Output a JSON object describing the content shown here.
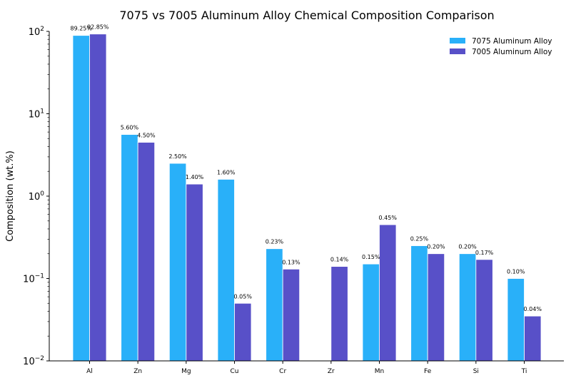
{
  "chart_data": {
    "type": "bar",
    "title": "7075 vs 7005 Aluminum Alloy Chemical Composition Comparison",
    "xlabel": "",
    "ylabel": "Composition (wt.%)",
    "yscale": "log",
    "ylim": [
      0.01,
      100
    ],
    "yticks": [
      {
        "value": 0.01,
        "base": "10",
        "exp": "−2"
      },
      {
        "value": 0.1,
        "base": "10",
        "exp": "−1"
      },
      {
        "value": 1,
        "base": "10",
        "exp": "0"
      },
      {
        "value": 10,
        "base": "10",
        "exp": "1"
      },
      {
        "value": 100,
        "base": "10",
        "exp": "2"
      }
    ],
    "categories": [
      "Al",
      "Zn",
      "Mg",
      "Cu",
      "Cr",
      "Zr",
      "Mn",
      "Fe",
      "Si",
      "Ti"
    ],
    "series": [
      {
        "name": "7075 Aluminum Alloy",
        "color": "#29B0F9",
        "values": [
          89.25,
          5.6,
          2.5,
          1.6,
          0.23,
          null,
          0.15,
          0.25,
          0.2,
          0.1
        ],
        "labels": [
          "89.25%",
          "5.60%",
          "2.50%",
          "1.60%",
          "0.23%",
          "",
          "0.15%",
          "0.25%",
          "0.20%",
          "0.10%"
        ]
      },
      {
        "name": "7005 Aluminum Alloy",
        "color": "#5850C8",
        "values": [
          92.85,
          4.5,
          1.4,
          0.05,
          0.13,
          0.14,
          0.45,
          0.2,
          0.17,
          0.035
        ],
        "labels": [
          "92.85%",
          "4.50%",
          "1.40%",
          "0.05%",
          "0.13%",
          "0.14%",
          "0.45%",
          "0.20%",
          "0.17%",
          "0.04%"
        ]
      }
    ],
    "legend_position": "top-right",
    "grid": false
  }
}
